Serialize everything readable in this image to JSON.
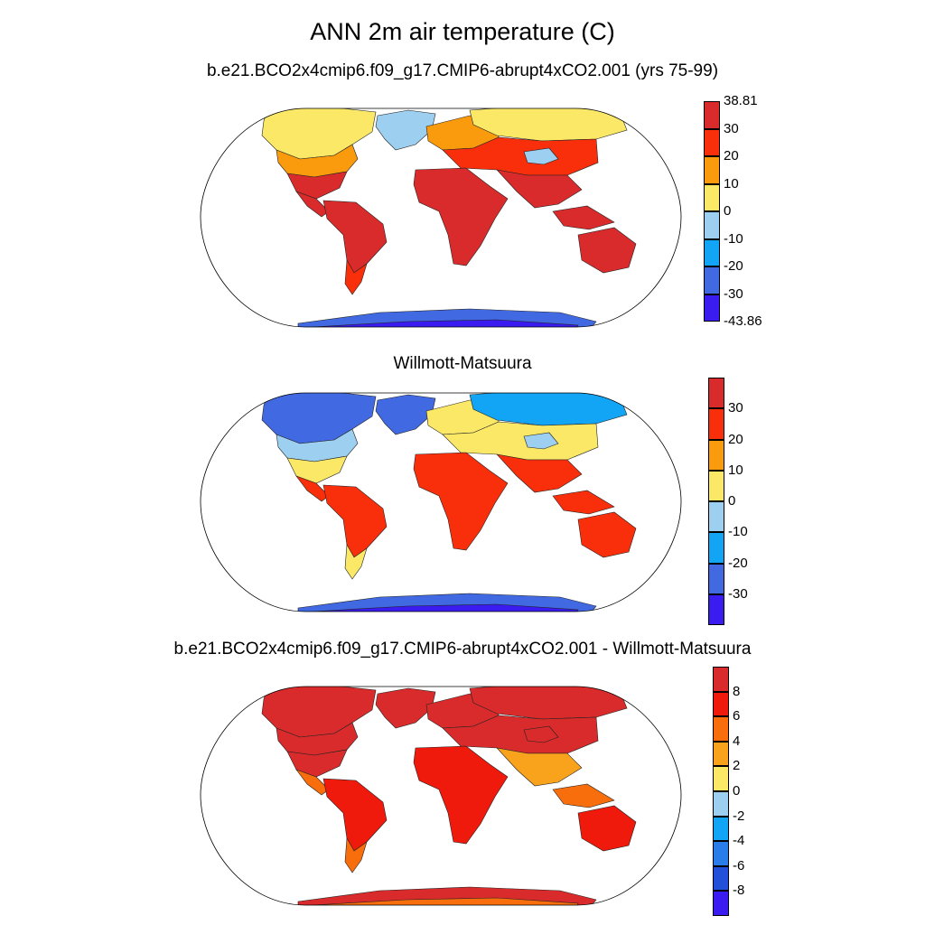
{
  "title": "ANN 2m air temperature (C)",
  "panels": [
    {
      "id": "model",
      "title": "b.e21.BCO2x4cmip6.f09_g17.CMIP6-abrupt4xCO2.001 (yrs 75-99)",
      "colorbar": {
        "colors": [
          "#3a1cf0",
          "#4169e1",
          "#12a5f5",
          "#9dcff0",
          "#fbe866",
          "#f99b0c",
          "#f92f0c",
          "#d92b2b"
        ],
        "labels": [
          "-43.86",
          "-30",
          "-20",
          "-10",
          "0",
          "10",
          "20",
          "30",
          "38.81"
        ],
        "min": -43.86,
        "max": 38.81
      },
      "regions": {
        "north_america_north": "#fbe866",
        "north_america_mid": "#f99b0c",
        "north_america_south": "#d92b2b",
        "central_america": "#d92b2b",
        "greenland": "#9dcff0",
        "south_america": "#d92b2b",
        "patagonia": "#f92f0c",
        "europe": "#f99b0c",
        "siberia": "#fbe866",
        "central_asia": "#f92f0c",
        "tibet": "#9dcff0",
        "africa": "#d92b2b",
        "south_asia": "#d92b2b",
        "maritime": "#d92b2b",
        "australia": "#d92b2b",
        "antarctica_coast": "#4169e1",
        "antarctica_interior": "#3a1cf0"
      }
    },
    {
      "id": "obs",
      "title": "Willmott-Matsuura",
      "colorbar": {
        "colors": [
          "#3a1cf0",
          "#4169e1",
          "#12a5f5",
          "#9dcff0",
          "#fbe866",
          "#f99b0c",
          "#f92f0c",
          "#d92b2b"
        ],
        "labels": [
          "",
          "-30",
          "-20",
          "-10",
          "0",
          "10",
          "20",
          "30",
          ""
        ],
        "min": -40,
        "max": 40
      },
      "regions": {
        "north_america_north": "#4169e1",
        "north_america_mid": "#9dcff0",
        "north_america_south": "#fbe866",
        "central_america": "#f92f0c",
        "greenland": "#4169e1",
        "south_america": "#f92f0c",
        "patagonia": "#fbe866",
        "europe": "#fbe866",
        "siberia": "#12a5f5",
        "central_asia": "#fbe866",
        "tibet": "#9dcff0",
        "africa": "#f92f0c",
        "south_asia": "#f92f0c",
        "maritime": "#f92f0c",
        "australia": "#f92f0c",
        "antarctica_coast": "#4169e1",
        "antarctica_interior": "#3a1cf0"
      }
    },
    {
      "id": "diff",
      "title": "b.e21.BCO2x4cmip6.f09_g17.CMIP6-abrupt4xCO2.001 - Willmott-Matsuura",
      "colorbar": {
        "colors": [
          "#3a1cf0",
          "#2350d8",
          "#2a7de8",
          "#12a5f5",
          "#9dcff0",
          "#fbe866",
          "#f9a21c",
          "#f96e0c",
          "#ef1a0c",
          "#d92b2b"
        ],
        "labels": [
          "",
          "-8",
          "-6",
          "-4",
          "-2",
          "0",
          "2",
          "4",
          "6",
          "8",
          ""
        ],
        "min": -10,
        "max": 10
      },
      "regions": {
        "north_america_north": "#d92b2b",
        "north_america_mid": "#d92b2b",
        "north_america_south": "#d92b2b",
        "central_america": "#f96e0c",
        "greenland": "#d92b2b",
        "south_america": "#ef1a0c",
        "patagonia": "#f96e0c",
        "europe": "#d92b2b",
        "siberia": "#d92b2b",
        "central_asia": "#d92b2b",
        "tibet": "#d92b2b",
        "africa": "#ef1a0c",
        "south_asia": "#f9a21c",
        "maritime": "#f96e0c",
        "australia": "#ef1a0c",
        "antarctica_coast": "#d92b2b",
        "antarctica_interior": "#f96e0c"
      }
    }
  ]
}
